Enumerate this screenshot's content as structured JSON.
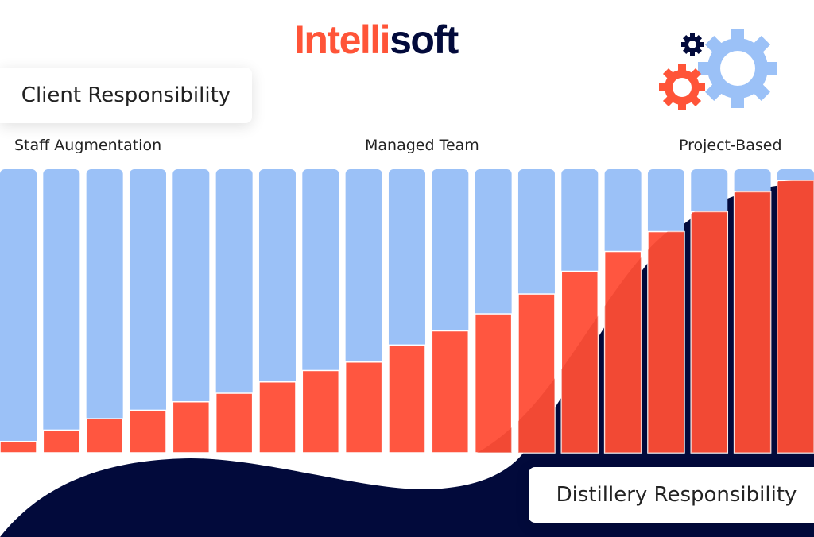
{
  "brand": {
    "logo_part1": "Intelli",
    "logo_part2": "soft"
  },
  "colors": {
    "client": "#9bc1f7",
    "distillery": "#ff5640",
    "navy": "#020a3b",
    "accent": "#ff5438"
  },
  "icons": [
    "gear-navy-icon",
    "gear-red-icon",
    "gear-blue-icon"
  ],
  "chart_data": {
    "type": "bar",
    "stacked": true,
    "normalized": true,
    "bar_count": 19,
    "annotations": [
      "Staff Augmentation",
      "Managed Team",
      "Project-Based"
    ],
    "series": [
      {
        "name": "Distillery Responsibility",
        "color": "#ff5640",
        "values": [
          0.04,
          0.08,
          0.12,
          0.15,
          0.18,
          0.21,
          0.25,
          0.29,
          0.32,
          0.38,
          0.43,
          0.49,
          0.56,
          0.64,
          0.71,
          0.78,
          0.85,
          0.92,
          0.96
        ]
      },
      {
        "name": "Client Responsibility",
        "color": "#9bc1f7",
        "values": [
          0.96,
          0.92,
          0.88,
          0.85,
          0.82,
          0.79,
          0.75,
          0.71,
          0.68,
          0.62,
          0.57,
          0.51,
          0.44,
          0.36,
          0.29,
          0.22,
          0.15,
          0.08,
          0.04
        ]
      }
    ],
    "ylim": [
      0,
      1
    ],
    "grid": false,
    "axes": false
  }
}
